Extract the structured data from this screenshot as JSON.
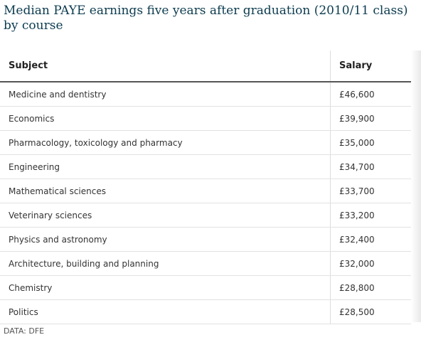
{
  "chart_data": {
    "type": "table",
    "title": "Median PAYE earnings five years after graduation (2010/11 class) by course",
    "columns": [
      "Subject",
      "Salary"
    ],
    "rows": [
      {
        "subject": "Medicine and dentistry",
        "salary": "£46,600",
        "value": 46600
      },
      {
        "subject": "Economics",
        "salary": "£39,900",
        "value": 39900
      },
      {
        "subject": "Pharmacology, toxicology and pharmacy",
        "salary": "£35,000",
        "value": 35000
      },
      {
        "subject": "Engineering",
        "salary": "£34,700",
        "value": 34700
      },
      {
        "subject": "Mathematical sciences",
        "salary": "£33,700",
        "value": 33700
      },
      {
        "subject": "Veterinary sciences",
        "salary": "£33,200",
        "value": 33200
      },
      {
        "subject": "Physics and astronomy",
        "salary": "£32,400",
        "value": 32400
      },
      {
        "subject": "Architecture, building and planning",
        "salary": "£32,000",
        "value": 32000
      },
      {
        "subject": "Chemistry",
        "salary": "£28,800",
        "value": 28800
      },
      {
        "subject": "Politics",
        "salary": "£28,500",
        "value": 28500
      }
    ],
    "source": "DATA: DFE"
  }
}
